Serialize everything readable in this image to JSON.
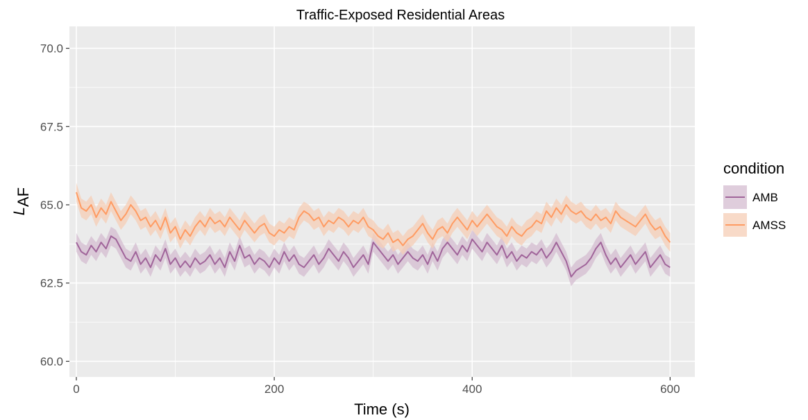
{
  "chart_data": {
    "type": "line",
    "title": "Traffic-Exposed Residential Areas",
    "xlabel": "Time (s)",
    "ylabel_main": "L",
    "ylabel_sub": "AF",
    "xlim": [
      -7,
      625
    ],
    "ylim": [
      59.5,
      70.7
    ],
    "x_ticks": [
      0,
      200,
      400,
      600
    ],
    "x_tick_labels": [
      "0",
      "200",
      "400",
      "600"
    ],
    "y_ticks": [
      60.0,
      62.5,
      65.0,
      67.5,
      70.0
    ],
    "y_tick_labels": [
      "60.0",
      "62.5",
      "65.0",
      "67.5",
      "70.0"
    ],
    "grid": true,
    "legend": {
      "title": "condition",
      "position": "right"
    },
    "series": [
      {
        "name": "AMB",
        "color": "#a0649a",
        "ribbon_color": "#d4bcd0",
        "band_halfwidth": 0.3,
        "x": [
          0,
          5,
          10,
          15,
          20,
          25,
          30,
          35,
          40,
          45,
          50,
          55,
          60,
          65,
          70,
          75,
          80,
          85,
          90,
          95,
          100,
          105,
          110,
          115,
          120,
          125,
          130,
          135,
          140,
          145,
          150,
          155,
          160,
          165,
          170,
          175,
          180,
          185,
          190,
          195,
          200,
          205,
          210,
          215,
          220,
          225,
          230,
          235,
          240,
          245,
          250,
          255,
          260,
          265,
          270,
          275,
          280,
          285,
          290,
          295,
          300,
          305,
          310,
          315,
          320,
          325,
          330,
          335,
          340,
          345,
          350,
          355,
          360,
          365,
          370,
          375,
          380,
          385,
          390,
          395,
          400,
          405,
          410,
          415,
          420,
          425,
          430,
          435,
          440,
          445,
          450,
          455,
          460,
          465,
          470,
          475,
          480,
          485,
          490,
          495,
          500,
          505,
          510,
          515,
          520,
          525,
          530,
          535,
          540,
          545,
          550,
          555,
          560,
          565,
          570,
          575,
          580,
          585,
          590,
          595,
          600
        ],
        "y": [
          63.8,
          63.5,
          63.4,
          63.7,
          63.5,
          63.8,
          63.6,
          64.0,
          63.9,
          63.6,
          63.3,
          63.2,
          63.5,
          63.1,
          63.3,
          63.0,
          63.4,
          63.2,
          63.6,
          63.1,
          63.3,
          63.0,
          63.2,
          63.0,
          63.3,
          63.1,
          63.2,
          63.4,
          63.1,
          63.3,
          63.0,
          63.5,
          63.2,
          63.7,
          63.3,
          63.4,
          63.1,
          63.3,
          63.2,
          63.0,
          63.3,
          63.1,
          63.5,
          63.2,
          63.4,
          63.1,
          63.0,
          63.2,
          63.4,
          63.1,
          63.3,
          63.6,
          63.4,
          63.2,
          63.5,
          63.3,
          63.0,
          63.2,
          63.4,
          63.1,
          63.8,
          63.6,
          63.4,
          63.2,
          63.4,
          63.1,
          63.3,
          63.5,
          63.3,
          63.2,
          63.4,
          63.1,
          63.5,
          63.2,
          63.6,
          63.8,
          63.6,
          63.4,
          63.7,
          63.5,
          63.9,
          63.7,
          63.5,
          63.8,
          63.6,
          63.4,
          63.7,
          63.3,
          63.5,
          63.2,
          63.4,
          63.3,
          63.5,
          63.4,
          63.6,
          63.3,
          63.5,
          63.8,
          63.5,
          63.2,
          62.7,
          62.9,
          63.0,
          63.1,
          63.3,
          63.6,
          63.8,
          63.4,
          63.1,
          63.3,
          63.0,
          63.2,
          63.4,
          63.1,
          63.3,
          63.5,
          63.0,
          63.2,
          63.4,
          63.1,
          63.0
        ]
      },
      {
        "name": "AMSS",
        "color": "#ff9b62",
        "ribbon_color": "#f5cdb6",
        "band_halfwidth": 0.3,
        "x": [
          0,
          5,
          10,
          15,
          20,
          25,
          30,
          35,
          40,
          45,
          50,
          55,
          60,
          65,
          70,
          75,
          80,
          85,
          90,
          95,
          100,
          105,
          110,
          115,
          120,
          125,
          130,
          135,
          140,
          145,
          150,
          155,
          160,
          165,
          170,
          175,
          180,
          185,
          190,
          195,
          200,
          205,
          210,
          215,
          220,
          225,
          230,
          235,
          240,
          245,
          250,
          255,
          260,
          265,
          270,
          275,
          280,
          285,
          290,
          295,
          300,
          305,
          310,
          315,
          320,
          325,
          330,
          335,
          340,
          345,
          350,
          355,
          360,
          365,
          370,
          375,
          380,
          385,
          390,
          395,
          400,
          405,
          410,
          415,
          420,
          425,
          430,
          435,
          440,
          445,
          450,
          455,
          460,
          465,
          470,
          475,
          480,
          485,
          490,
          495,
          500,
          505,
          510,
          515,
          520,
          525,
          530,
          535,
          540,
          545,
          550,
          555,
          560,
          565,
          570,
          575,
          580,
          585,
          590,
          595,
          600
        ],
        "y": [
          65.4,
          64.9,
          64.8,
          65.0,
          64.6,
          64.9,
          64.7,
          65.1,
          64.8,
          64.5,
          64.7,
          65.0,
          64.8,
          64.5,
          64.6,
          64.3,
          64.5,
          64.2,
          64.6,
          64.1,
          64.3,
          63.9,
          64.2,
          64.0,
          64.3,
          64.5,
          64.3,
          64.6,
          64.4,
          64.5,
          64.3,
          64.6,
          64.4,
          64.2,
          64.5,
          64.3,
          64.1,
          64.3,
          64.4,
          64.1,
          64.0,
          64.2,
          64.1,
          64.3,
          64.2,
          64.6,
          64.8,
          64.7,
          64.5,
          64.6,
          64.3,
          64.5,
          64.4,
          64.6,
          64.5,
          64.3,
          64.5,
          64.4,
          64.6,
          64.3,
          64.2,
          64.0,
          63.9,
          64.1,
          63.8,
          63.9,
          63.7,
          63.9,
          64.0,
          64.2,
          64.4,
          64.1,
          63.9,
          64.2,
          64.3,
          64.1,
          64.4,
          64.6,
          64.4,
          64.2,
          64.5,
          64.3,
          64.5,
          64.7,
          64.5,
          64.3,
          64.2,
          64.0,
          64.3,
          64.1,
          64.0,
          64.2,
          64.3,
          64.5,
          64.4,
          64.8,
          64.6,
          64.9,
          64.7,
          65.0,
          64.8,
          64.7,
          64.8,
          64.6,
          64.5,
          64.7,
          64.5,
          64.6,
          64.4,
          64.8,
          64.6,
          64.5,
          64.4,
          64.3,
          64.5,
          64.7,
          64.4,
          64.2,
          64.3,
          64.0,
          63.8
        ]
      }
    ]
  }
}
